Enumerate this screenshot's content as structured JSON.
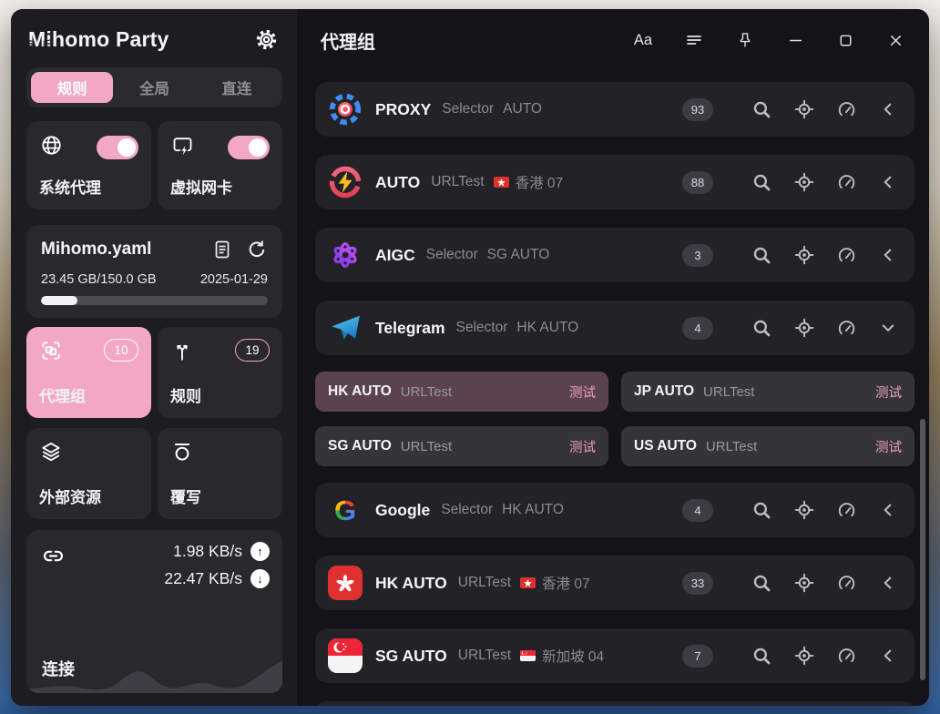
{
  "app": {
    "title": "Mihomo Party"
  },
  "icons": {
    "up_arrow": "↑",
    "down_arrow": "↓"
  },
  "sidebar": {
    "mode_tabs": [
      {
        "label": "规则",
        "active": true
      },
      {
        "label": "全局",
        "active": false
      },
      {
        "label": "直连",
        "active": false
      }
    ],
    "toggles": [
      {
        "label": "系统代理",
        "on": true
      },
      {
        "label": "虚拟网卡",
        "on": true
      }
    ],
    "profile": {
      "name": "Mihomo.yaml",
      "usage": "23.45 GB/150.0 GB",
      "expiry": "2025-01-29",
      "progress_percent": 16
    },
    "nav_cards": [
      {
        "label": "代理组",
        "badge": "10",
        "active": true
      },
      {
        "label": "规则",
        "badge": "19",
        "active": false
      },
      {
        "label": "外部资源",
        "badge": "",
        "active": false
      },
      {
        "label": "覆写",
        "badge": "",
        "active": false
      }
    ],
    "connection": {
      "label": "连接",
      "upload": "1.98 KB/s",
      "download": "22.47 KB/s"
    }
  },
  "main": {
    "title": "代理组",
    "titlebar": {
      "text_size_label": "Aa"
    },
    "groups": [
      {
        "name": "PROXY",
        "type": "Selector",
        "current": "AUTO",
        "flag": "",
        "count": "93",
        "logo": "proxy",
        "expanded": false
      },
      {
        "name": "AUTO",
        "type": "URLTest",
        "current": "香港 07",
        "flag": "hk",
        "count": "88",
        "logo": "auto",
        "expanded": false
      },
      {
        "name": "AIGC",
        "type": "Selector",
        "current": "SG AUTO",
        "flag": "",
        "count": "3",
        "logo": "aigc",
        "expanded": false
      },
      {
        "name": "Telegram",
        "type": "Selector",
        "current": "HK AUTO",
        "flag": "",
        "count": "4",
        "logo": "telegram",
        "expanded": true,
        "proxies": [
          {
            "name": "HK AUTO",
            "type": "URLTest",
            "delay_label": "测试",
            "selected": true
          },
          {
            "name": "JP AUTO",
            "type": "URLTest",
            "delay_label": "测试",
            "selected": false
          },
          {
            "name": "SG AUTO",
            "type": "URLTest",
            "delay_label": "测试",
            "selected": false
          },
          {
            "name": "US AUTO",
            "type": "URLTest",
            "delay_label": "测试",
            "selected": false
          }
        ]
      },
      {
        "name": "Google",
        "type": "Selector",
        "current": "HK AUTO",
        "flag": "",
        "count": "4",
        "logo": "google",
        "expanded": false
      },
      {
        "name": "HK AUTO",
        "type": "URLTest",
        "current": "香港 07",
        "flag": "hk",
        "count": "33",
        "logo": "hk",
        "expanded": false
      },
      {
        "name": "SG AUTO",
        "type": "URLTest",
        "current": "新加坡 04",
        "flag": "sg",
        "count": "7",
        "logo": "sg",
        "expanded": false
      }
    ]
  },
  "colors": {
    "accent_pink": "#f2a7c5",
    "selected_proxy_item_bg": "#5a434d",
    "delay_text_pink": "#f0a2c0",
    "badge_bg": "#3d3c42"
  }
}
